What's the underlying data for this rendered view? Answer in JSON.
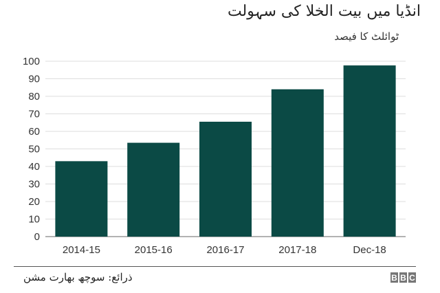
{
  "chart_data": {
    "type": "bar",
    "title": "انڈیا میں بیت الخلا کی سہولت",
    "subtitle": "ٹوائلٹ کا فیصد",
    "categories": [
      "2014-15",
      "2015-16",
      "2016-17",
      "2017-18",
      "Dec-18"
    ],
    "values": [
      43,
      53.5,
      65.5,
      84,
      97.6
    ],
    "ylim": [
      0,
      100
    ],
    "yticks": [
      0,
      10,
      20,
      30,
      40,
      50,
      60,
      70,
      80,
      90,
      100
    ],
    "grid": true,
    "bar_color": "#0b4a45"
  },
  "footer": {
    "source": "ذرائع: سوچھ بھارت مشن",
    "logo": "BBC"
  }
}
